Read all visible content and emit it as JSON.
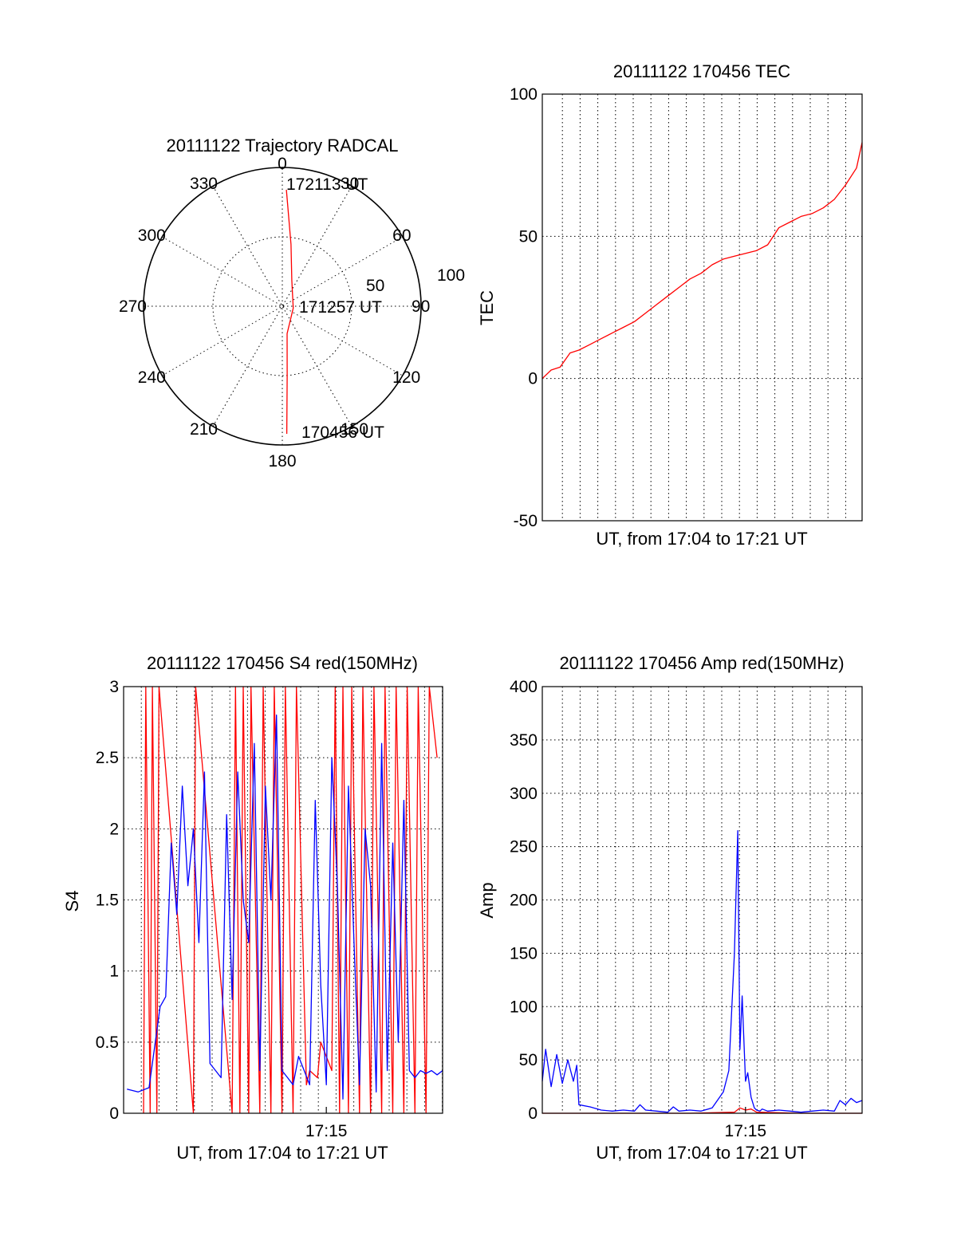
{
  "colors": {
    "red": "#ff0000",
    "blue": "#0000ff",
    "axes": "#000000"
  },
  "chart_data": [
    {
      "type": "polar",
      "title": "20111122 Trajectory RADCAL",
      "angle_labels": [
        "0",
        "30",
        "60",
        "90",
        "120",
        "150",
        "180",
        "210",
        "240",
        "270",
        "300",
        "330"
      ],
      "radial_labels": [
        "50",
        "100"
      ],
      "trajectory": {
        "color": "red",
        "points": [
          {
            "azimuth": 178,
            "zenith": 92
          },
          {
            "azimuth": 176,
            "zenith": 50
          },
          {
            "azimuth": 170,
            "zenith": 20
          },
          {
            "azimuth": 100,
            "zenith": 8
          },
          {
            "azimuth": 20,
            "zenith": 20
          },
          {
            "azimuth": 8,
            "zenith": 45
          },
          {
            "azimuth": 2,
            "zenith": 84
          }
        ]
      },
      "annotations": {
        "end_label": "172113 UT",
        "mid_label": "171257 UT",
        "start_label": "170456 UT"
      }
    },
    {
      "type": "line",
      "title": "20111122 170456 TEC",
      "xlabel": "UT, from 17:04 to 17:21 UT",
      "ylabel": "TEC",
      "xlim": [
        17.067,
        17.355
      ],
      "ylim": [
        -50,
        100
      ],
      "yticks": [
        "100",
        "50",
        "0",
        "-50"
      ],
      "grid": true,
      "series": [
        {
          "color": "red",
          "x": [
            17.067,
            17.075,
            17.083,
            17.092,
            17.1,
            17.11,
            17.12,
            17.13,
            17.14,
            17.15,
            17.16,
            17.17,
            17.18,
            17.19,
            17.2,
            17.21,
            17.22,
            17.23,
            17.24,
            17.25,
            17.26,
            17.27,
            17.28,
            17.29,
            17.3,
            17.31,
            17.32,
            17.33,
            17.34,
            17.35,
            17.355
          ],
          "y": [
            0,
            3,
            4,
            9,
            10,
            12,
            14,
            16,
            18,
            20,
            23,
            26,
            29,
            32,
            35,
            37,
            40,
            42,
            43,
            44,
            45,
            47,
            53,
            55,
            57,
            58,
            60,
            63,
            68,
            74,
            83
          ]
        }
      ]
    },
    {
      "type": "line",
      "title": "20111122 170456 S4 red(150MHz)",
      "xlabel": "UT, from 17:04 to 17:21 UT",
      "ylabel": "S4",
      "xlim": [
        17.067,
        17.355
      ],
      "ylim": [
        0,
        3
      ],
      "yticks": [
        "3",
        "2.5",
        "2",
        "1.5",
        "1",
        "0.5",
        "0"
      ],
      "xticks": [
        {
          "value": 17.25,
          "label": "17:15"
        }
      ],
      "grid": true,
      "series": [
        {
          "color": "red",
          "x": [
            17.085,
            17.087,
            17.091,
            17.093,
            17.097,
            17.099,
            17.13,
            17.132,
            17.165,
            17.168,
            17.172,
            17.175,
            17.18,
            17.182,
            17.19,
            17.193,
            17.2,
            17.203,
            17.21,
            17.213,
            17.22,
            17.223,
            17.232,
            17.235,
            17.242,
            17.245,
            17.255,
            17.258,
            17.262,
            17.265,
            17.27,
            17.273,
            17.28,
            17.283,
            17.29,
            17.293,
            17.3,
            17.303,
            17.31,
            17.313,
            17.32,
            17.323,
            17.33,
            17.333,
            17.34,
            17.343,
            17.35
          ],
          "y": [
            0,
            3,
            0,
            3,
            0,
            3,
            0,
            3,
            0,
            3,
            0,
            3,
            0,
            3,
            0,
            3,
            0,
            3,
            0,
            3,
            0,
            3,
            0.2,
            0.3,
            0.25,
            0.5,
            0.3,
            3,
            0,
            3,
            0,
            3,
            0,
            3,
            0,
            3,
            0,
            3,
            0,
            3,
            0,
            3,
            0,
            3,
            0,
            3,
            2.5
          ]
        },
        {
          "color": "blue",
          "x": [
            17.07,
            17.08,
            17.09,
            17.1,
            17.105,
            17.11,
            17.115,
            17.12,
            17.125,
            17.13,
            17.135,
            17.14,
            17.145,
            17.15,
            17.155,
            17.16,
            17.165,
            17.17,
            17.175,
            17.18,
            17.185,
            17.19,
            17.195,
            17.2,
            17.205,
            17.21,
            17.215,
            17.22,
            17.225,
            17.23,
            17.235,
            17.24,
            17.245,
            17.25,
            17.255,
            17.26,
            17.265,
            17.27,
            17.275,
            17.28,
            17.285,
            17.29,
            17.295,
            17.3,
            17.305,
            17.31,
            17.315,
            17.32,
            17.325,
            17.33,
            17.335,
            17.34,
            17.345,
            17.35,
            17.355
          ],
          "y": [
            0.17,
            0.15,
            0.18,
            0.75,
            0.82,
            1.9,
            1.4,
            2.3,
            1.6,
            2.0,
            1.2,
            2.4,
            0.35,
            0.3,
            0.25,
            2.1,
            0.8,
            2.4,
            1.5,
            1.2,
            2.6,
            0.3,
            2.3,
            1.5,
            2.8,
            0.3,
            0.25,
            0.2,
            0.4,
            0.3,
            0.2,
            2.2,
            0.9,
            0.2,
            2.5,
            1.6,
            0.1,
            2.3,
            1.2,
            0.2,
            2.0,
            1.6,
            0.15,
            2.6,
            0.3,
            1.9,
            0.5,
            2.2,
            0.3,
            0.25,
            0.3,
            0.28,
            0.3,
            0.27,
            0.3
          ]
        }
      ]
    },
    {
      "type": "line",
      "title": "20111122 170456 Amp red(150MHz)",
      "xlabel": "UT, from 17:04 to 17:21 UT",
      "ylabel": "Amp",
      "xlim": [
        17.067,
        17.355
      ],
      "ylim": [
        0,
        400
      ],
      "yticks": [
        "400",
        "350",
        "300",
        "250",
        "200",
        "150",
        "100",
        "50",
        "0"
      ],
      "xticks": [
        {
          "value": 17.25,
          "label": "17:15"
        }
      ],
      "grid": true,
      "series": [
        {
          "color": "red",
          "x": [
            17.067,
            17.1,
            17.15,
            17.2,
            17.24,
            17.245,
            17.25,
            17.255,
            17.26,
            17.3,
            17.355
          ],
          "y": [
            0,
            0,
            0,
            0,
            1,
            5,
            3,
            4,
            1,
            0,
            0
          ]
        },
        {
          "color": "blue",
          "x": [
            17.067,
            17.07,
            17.075,
            17.08,
            17.085,
            17.09,
            17.095,
            17.098,
            17.1,
            17.11,
            17.12,
            17.13,
            17.14,
            17.15,
            17.155,
            17.16,
            17.17,
            17.18,
            17.185,
            17.19,
            17.2,
            17.21,
            17.22,
            17.23,
            17.235,
            17.24,
            17.243,
            17.245,
            17.247,
            17.25,
            17.252,
            17.255,
            17.258,
            17.26,
            17.263,
            17.265,
            17.27,
            17.28,
            17.29,
            17.3,
            17.31,
            17.32,
            17.33,
            17.335,
            17.34,
            17.345,
            17.35,
            17.355
          ],
          "y": [
            30,
            60,
            25,
            55,
            28,
            50,
            30,
            45,
            8,
            6,
            3,
            2,
            3,
            2,
            8,
            3,
            2,
            1,
            6,
            2,
            3,
            2,
            5,
            20,
            40,
            150,
            265,
            60,
            110,
            30,
            38,
            15,
            5,
            3,
            2,
            4,
            2,
            3,
            2,
            1,
            2,
            3,
            2,
            12,
            8,
            14,
            10,
            12
          ]
        }
      ]
    }
  ]
}
